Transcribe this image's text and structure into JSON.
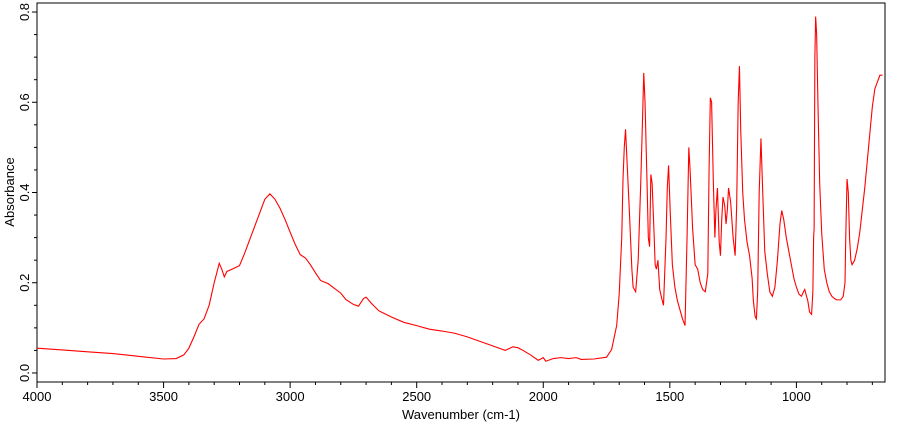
{
  "chart_data": {
    "type": "line",
    "title": "",
    "xlabel": "Wavenumber (cm-1)",
    "ylabel": "Absorbance",
    "xlim": [
      4000,
      650
    ],
    "ylim": [
      -0.02,
      0.82
    ],
    "x_reversed": true,
    "grid": false,
    "legend": "none",
    "line_color": "#ff0000",
    "x_ticks": [
      4000,
      3500,
      3000,
      2500,
      2000,
      1500,
      1000
    ],
    "x_tick_labels": [
      "4000",
      "3500",
      "3000",
      "2500",
      "2000",
      "1500",
      "1000"
    ],
    "y_ticks": [
      0.0,
      0.2,
      0.4,
      0.6,
      0.8
    ],
    "y_tick_labels": [
      "0.0",
      "0.2",
      "0.4",
      "0.6",
      "0.8"
    ],
    "series": [
      {
        "values": [
          [
            4000,
            0.055
          ],
          [
            3900,
            0.051
          ],
          [
            3800,
            0.047
          ],
          [
            3700,
            0.043
          ],
          [
            3600,
            0.037
          ],
          [
            3500,
            0.031
          ],
          [
            3450,
            0.032
          ],
          [
            3420,
            0.04
          ],
          [
            3400,
            0.055
          ],
          [
            3380,
            0.08
          ],
          [
            3360,
            0.108
          ],
          [
            3340,
            0.12
          ],
          [
            3320,
            0.15
          ],
          [
            3300,
            0.2
          ],
          [
            3280,
            0.243
          ],
          [
            3270,
            0.23
          ],
          [
            3260,
            0.213
          ],
          [
            3250,
            0.225
          ],
          [
            3230,
            0.23
          ],
          [
            3200,
            0.238
          ],
          [
            3180,
            0.265
          ],
          [
            3150,
            0.31
          ],
          [
            3120,
            0.355
          ],
          [
            3100,
            0.385
          ],
          [
            3080,
            0.397
          ],
          [
            3060,
            0.385
          ],
          [
            3040,
            0.365
          ],
          [
            3020,
            0.34
          ],
          [
            3000,
            0.312
          ],
          [
            2980,
            0.285
          ],
          [
            2960,
            0.262
          ],
          [
            2940,
            0.255
          ],
          [
            2920,
            0.24
          ],
          [
            2900,
            0.222
          ],
          [
            2880,
            0.205
          ],
          [
            2850,
            0.198
          ],
          [
            2800,
            0.177
          ],
          [
            2780,
            0.163
          ],
          [
            2750,
            0.152
          ],
          [
            2730,
            0.148
          ],
          [
            2710,
            0.165
          ],
          [
            2700,
            0.168
          ],
          [
            2680,
            0.155
          ],
          [
            2650,
            0.138
          ],
          [
            2600,
            0.124
          ],
          [
            2550,
            0.112
          ],
          [
            2500,
            0.105
          ],
          [
            2450,
            0.097
          ],
          [
            2400,
            0.093
          ],
          [
            2350,
            0.088
          ],
          [
            2300,
            0.08
          ],
          [
            2250,
            0.07
          ],
          [
            2200,
            0.06
          ],
          [
            2150,
            0.05
          ],
          [
            2120,
            0.058
          ],
          [
            2100,
            0.056
          ],
          [
            2080,
            0.05
          ],
          [
            2050,
            0.04
          ],
          [
            2020,
            0.028
          ],
          [
            2000,
            0.034
          ],
          [
            1990,
            0.026
          ],
          [
            1960,
            0.032
          ],
          [
            1930,
            0.034
          ],
          [
            1900,
            0.032
          ],
          [
            1870,
            0.034
          ],
          [
            1850,
            0.03
          ],
          [
            1800,
            0.031
          ],
          [
            1750,
            0.035
          ],
          [
            1730,
            0.052
          ],
          [
            1710,
            0.105
          ],
          [
            1700,
            0.175
          ],
          [
            1690,
            0.3
          ],
          [
            1685,
            0.43
          ],
          [
            1680,
            0.5
          ],
          [
            1675,
            0.54
          ],
          [
            1670,
            0.48
          ],
          [
            1660,
            0.36
          ],
          [
            1650,
            0.23
          ],
          [
            1645,
            0.19
          ],
          [
            1635,
            0.18
          ],
          [
            1625,
            0.25
          ],
          [
            1615,
            0.42
          ],
          [
            1608,
            0.56
          ],
          [
            1603,
            0.665
          ],
          [
            1598,
            0.6
          ],
          [
            1590,
            0.42
          ],
          [
            1585,
            0.3
          ],
          [
            1580,
            0.28
          ],
          [
            1575,
            0.44
          ],
          [
            1570,
            0.42
          ],
          [
            1562,
            0.305
          ],
          [
            1558,
            0.24
          ],
          [
            1553,
            0.23
          ],
          [
            1547,
            0.25
          ],
          [
            1540,
            0.185
          ],
          [
            1532,
            0.165
          ],
          [
            1525,
            0.15
          ],
          [
            1515,
            0.3
          ],
          [
            1510,
            0.41
          ],
          [
            1505,
            0.46
          ],
          [
            1498,
            0.35
          ],
          [
            1490,
            0.24
          ],
          [
            1480,
            0.19
          ],
          [
            1470,
            0.16
          ],
          [
            1460,
            0.14
          ],
          [
            1450,
            0.12
          ],
          [
            1440,
            0.105
          ],
          [
            1432,
            0.3
          ],
          [
            1425,
            0.5
          ],
          [
            1420,
            0.45
          ],
          [
            1410,
            0.32
          ],
          [
            1400,
            0.24
          ],
          [
            1390,
            0.23
          ],
          [
            1380,
            0.2
          ],
          [
            1370,
            0.185
          ],
          [
            1360,
            0.18
          ],
          [
            1350,
            0.22
          ],
          [
            1345,
            0.45
          ],
          [
            1340,
            0.61
          ],
          [
            1335,
            0.6
          ],
          [
            1328,
            0.42
          ],
          [
            1322,
            0.3
          ],
          [
            1318,
            0.36
          ],
          [
            1312,
            0.41
          ],
          [
            1305,
            0.29
          ],
          [
            1300,
            0.26
          ],
          [
            1295,
            0.34
          ],
          [
            1290,
            0.39
          ],
          [
            1283,
            0.37
          ],
          [
            1278,
            0.33
          ],
          [
            1273,
            0.36
          ],
          [
            1268,
            0.41
          ],
          [
            1260,
            0.38
          ],
          [
            1250,
            0.3
          ],
          [
            1242,
            0.26
          ],
          [
            1236,
            0.37
          ],
          [
            1230,
            0.6
          ],
          [
            1225,
            0.68
          ],
          [
            1220,
            0.54
          ],
          [
            1212,
            0.4
          ],
          [
            1205,
            0.34
          ],
          [
            1195,
            0.29
          ],
          [
            1185,
            0.26
          ],
          [
            1175,
            0.21
          ],
          [
            1170,
            0.16
          ],
          [
            1163,
            0.125
          ],
          [
            1158,
            0.12
          ],
          [
            1153,
            0.18
          ],
          [
            1147,
            0.4
          ],
          [
            1140,
            0.52
          ],
          [
            1133,
            0.4
          ],
          [
            1125,
            0.27
          ],
          [
            1115,
            0.22
          ],
          [
            1105,
            0.18
          ],
          [
            1095,
            0.17
          ],
          [
            1085,
            0.19
          ],
          [
            1075,
            0.25
          ],
          [
            1065,
            0.33
          ],
          [
            1058,
            0.36
          ],
          [
            1050,
            0.34
          ],
          [
            1040,
            0.3
          ],
          [
            1030,
            0.27
          ],
          [
            1020,
            0.24
          ],
          [
            1010,
            0.21
          ],
          [
            1000,
            0.19
          ],
          [
            990,
            0.175
          ],
          [
            980,
            0.17
          ],
          [
            972,
            0.18
          ],
          [
            967,
            0.185
          ],
          [
            960,
            0.17
          ],
          [
            955,
            0.16
          ],
          [
            948,
            0.135
          ],
          [
            940,
            0.13
          ],
          [
            935,
            0.18
          ],
          [
            932,
            0.3
          ],
          [
            930,
            0.32
          ],
          [
            927,
            0.7
          ],
          [
            924,
            0.79
          ],
          [
            920,
            0.75
          ],
          [
            915,
            0.6
          ],
          [
            908,
            0.42
          ],
          [
            900,
            0.31
          ],
          [
            890,
            0.23
          ],
          [
            880,
            0.2
          ],
          [
            870,
            0.18
          ],
          [
            860,
            0.17
          ],
          [
            850,
            0.165
          ],
          [
            840,
            0.162
          ],
          [
            825,
            0.162
          ],
          [
            815,
            0.17
          ],
          [
            808,
            0.2
          ],
          [
            805,
            0.3
          ],
          [
            800,
            0.43
          ],
          [
            795,
            0.4
          ],
          [
            790,
            0.3
          ],
          [
            785,
            0.25
          ],
          [
            780,
            0.24
          ],
          [
            770,
            0.25
          ],
          [
            760,
            0.275
          ],
          [
            750,
            0.31
          ],
          [
            740,
            0.36
          ],
          [
            730,
            0.41
          ],
          [
            720,
            0.47
          ],
          [
            710,
            0.53
          ],
          [
            700,
            0.59
          ],
          [
            690,
            0.63
          ],
          [
            680,
            0.645
          ],
          [
            670,
            0.66
          ],
          [
            660,
            0.66
          ]
        ]
      }
    ]
  }
}
